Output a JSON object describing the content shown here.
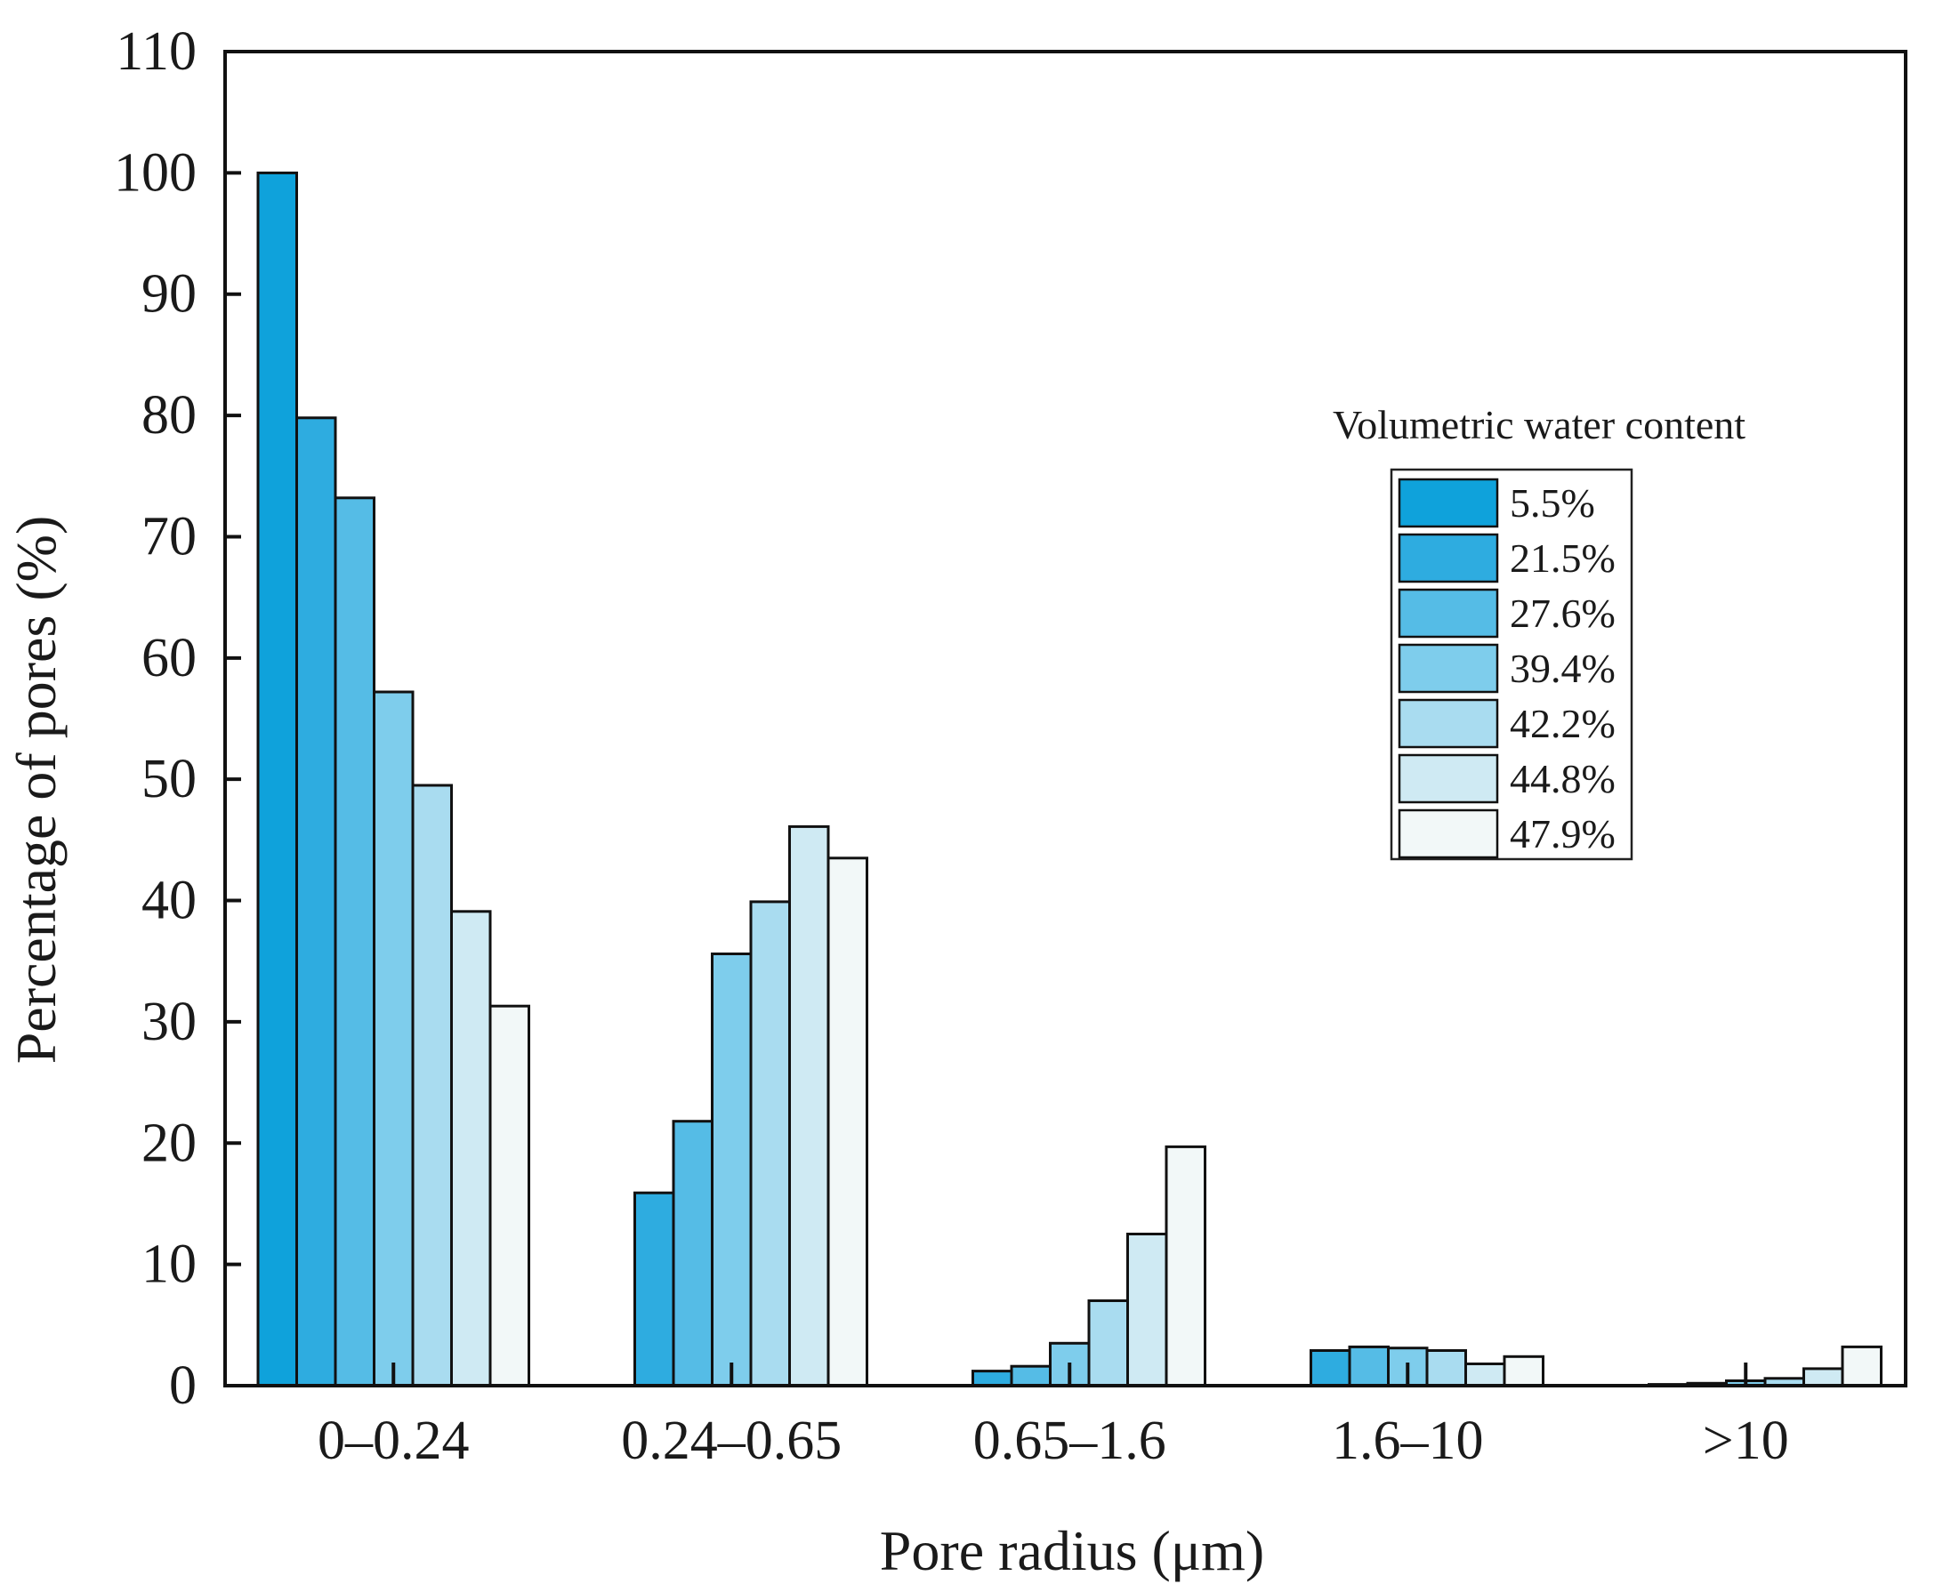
{
  "chart_data": {
    "type": "bar",
    "title": "",
    "xlabel": "Pore radius (μm)",
    "ylabel": "Percentage of pores (%)",
    "ylim": [
      0,
      110
    ],
    "yticks": [
      0,
      10,
      20,
      30,
      40,
      50,
      60,
      70,
      80,
      90,
      100,
      110
    ],
    "categories": [
      "0–0.24",
      "0.24–0.65",
      "0.65–1.6",
      "1.6–10",
      ">10"
    ],
    "legend_title": "Volumetric water content",
    "legend_position": "upper-right",
    "series": [
      {
        "name": "5.5%",
        "color": "#0fa2db",
        "values": [
          100.0,
          0.0,
          0.0,
          0.0,
          0.0
        ]
      },
      {
        "name": "21.5%",
        "color": "#2eace0",
        "values": [
          79.8,
          15.9,
          1.2,
          2.9,
          0.1
        ]
      },
      {
        "name": "27.6%",
        "color": "#55bce6",
        "values": [
          73.2,
          21.8,
          1.6,
          3.2,
          0.2
        ]
      },
      {
        "name": "39.4%",
        "color": "#7ecdec",
        "values": [
          57.2,
          35.6,
          3.5,
          3.1,
          0.4
        ]
      },
      {
        "name": "42.2%",
        "color": "#a9dcf0",
        "values": [
          49.5,
          39.9,
          7.0,
          2.9,
          0.6
        ]
      },
      {
        "name": "44.8%",
        "color": "#cfeaf3",
        "values": [
          39.1,
          46.1,
          12.5,
          1.8,
          1.4
        ]
      },
      {
        "name": "47.9%",
        "color": "#f2f8f8",
        "values": [
          31.3,
          43.5,
          19.7,
          2.4,
          3.2
        ]
      }
    ]
  }
}
